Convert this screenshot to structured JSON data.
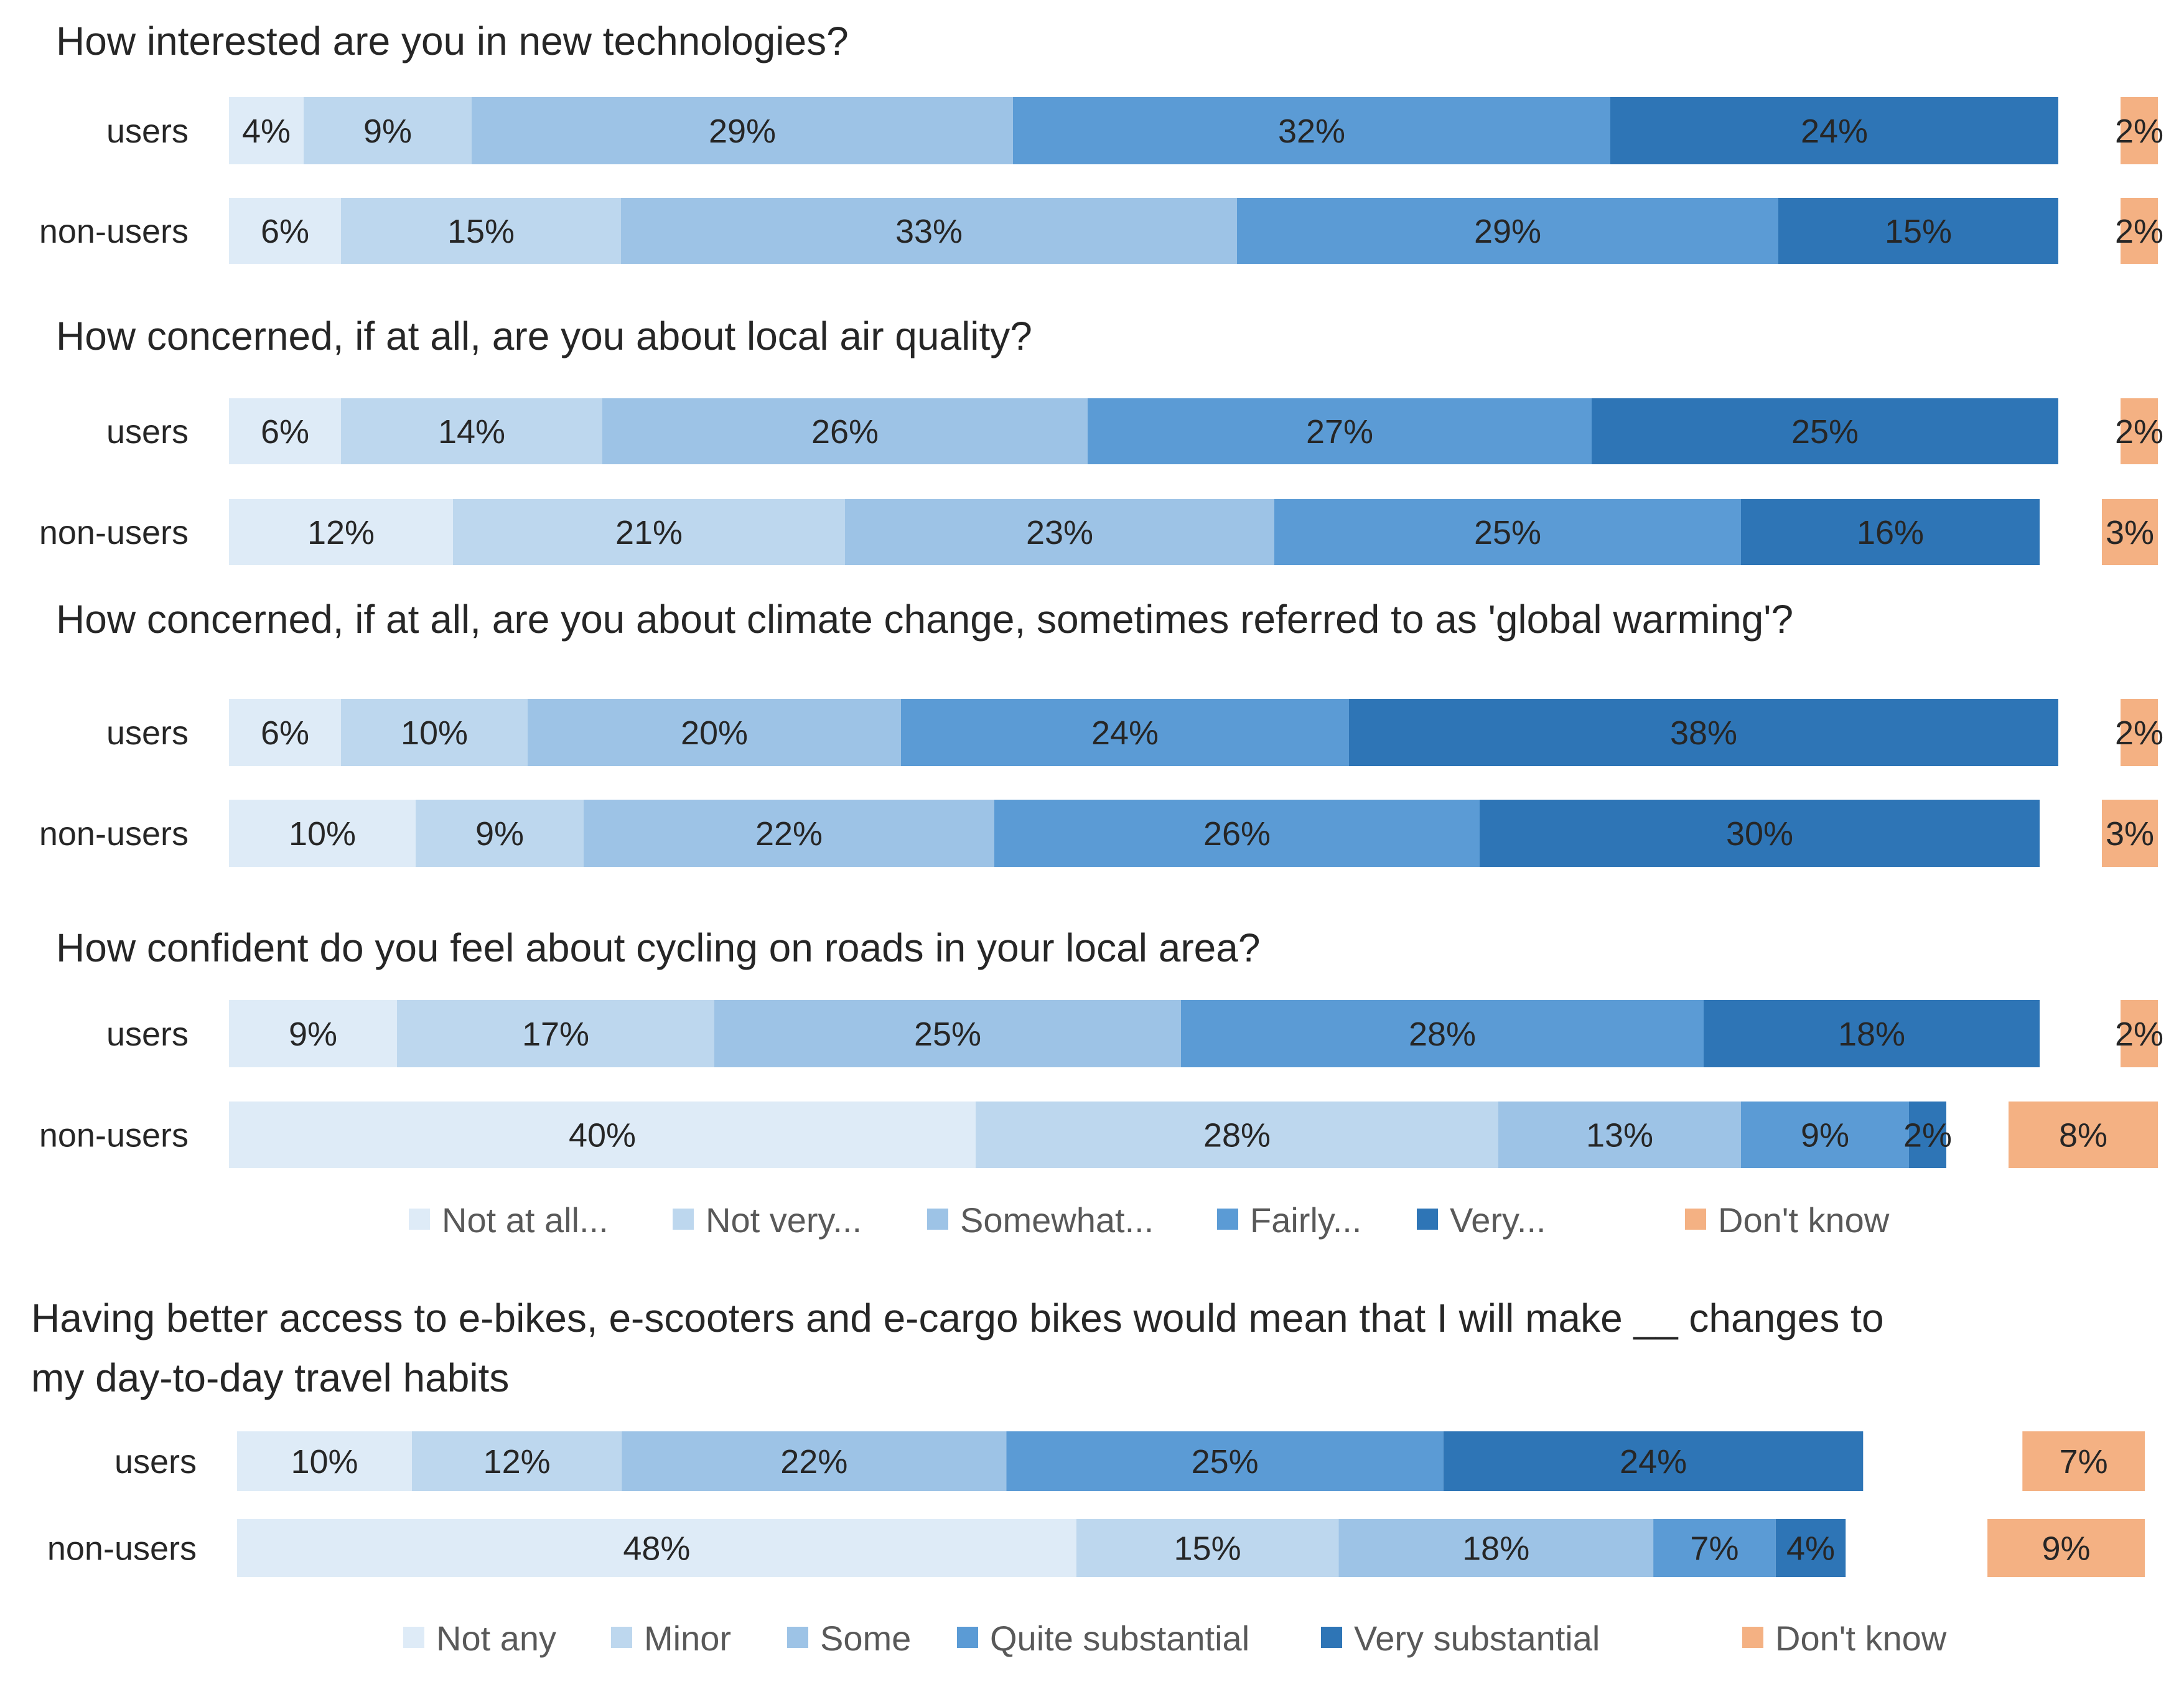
{
  "colors": {
    "scale": [
      "#deebf7",
      "#bdd7ee",
      "#9dc3e6",
      "#5b9bd5",
      "#2e75b6"
    ],
    "dont_know": "#f4b183"
  },
  "legends": [
    {
      "items": [
        "Not at all...",
        "Not very...",
        "Somewhat...",
        "Fairly...",
        "Very...",
        "Don't know"
      ]
    },
    {
      "items": [
        "Not any",
        "Minor",
        "Some",
        "Quite substantial",
        "Very substantial",
        "Don't know"
      ]
    }
  ],
  "chart_data": [
    {
      "type": "bar",
      "stacked": true,
      "orientation": "horizontal",
      "title": "How interested are you in new technologies?",
      "legend": 0,
      "categories": [
        "users",
        "non-users"
      ],
      "series": [
        {
          "name": "Not at all...",
          "values": [
            4,
            6
          ]
        },
        {
          "name": "Not very...",
          "values": [
            9,
            15
          ]
        },
        {
          "name": "Somewhat...",
          "values": [
            29,
            33
          ]
        },
        {
          "name": "Fairly...",
          "values": [
            32,
            29
          ]
        },
        {
          "name": "Very...",
          "values": [
            24,
            15
          ]
        },
        {
          "name": "Don't know",
          "values": [
            2,
            2
          ]
        }
      ]
    },
    {
      "type": "bar",
      "stacked": true,
      "orientation": "horizontal",
      "title": "How concerned, if at all, are you about local air quality?",
      "legend": 0,
      "categories": [
        "users",
        "non-users"
      ],
      "series": [
        {
          "name": "Not at all...",
          "values": [
            6,
            12
          ]
        },
        {
          "name": "Not very...",
          "values": [
            14,
            21
          ]
        },
        {
          "name": "Somewhat...",
          "values": [
            26,
            23
          ]
        },
        {
          "name": "Fairly...",
          "values": [
            27,
            25
          ]
        },
        {
          "name": "Very...",
          "values": [
            25,
            16
          ]
        },
        {
          "name": "Don't know",
          "values": [
            2,
            3
          ]
        }
      ]
    },
    {
      "type": "bar",
      "stacked": true,
      "orientation": "horizontal",
      "title": "How concerned, if at all, are you about climate change, sometimes referred to as 'global warming'?",
      "legend": 0,
      "categories": [
        "users",
        "non-users"
      ],
      "series": [
        {
          "name": "Not at all...",
          "values": [
            6,
            10
          ]
        },
        {
          "name": "Not very...",
          "values": [
            10,
            9
          ]
        },
        {
          "name": "Somewhat...",
          "values": [
            20,
            22
          ]
        },
        {
          "name": "Fairly...",
          "values": [
            24,
            26
          ]
        },
        {
          "name": "Very...",
          "values": [
            38,
            30
          ]
        },
        {
          "name": "Don't know",
          "values": [
            2,
            3
          ]
        }
      ]
    },
    {
      "type": "bar",
      "stacked": true,
      "orientation": "horizontal",
      "title": "How confident do you feel about cycling on roads in your local area?",
      "legend": 0,
      "categories": [
        "users",
        "non-users"
      ],
      "series": [
        {
          "name": "Not at all...",
          "values": [
            9,
            40
          ]
        },
        {
          "name": "Not very...",
          "values": [
            17,
            28
          ]
        },
        {
          "name": "Somewhat...",
          "values": [
            25,
            13
          ]
        },
        {
          "name": "Fairly...",
          "values": [
            28,
            9
          ]
        },
        {
          "name": "Very...",
          "values": [
            18,
            2
          ]
        },
        {
          "name": "Don't know",
          "values": [
            2,
            8
          ]
        }
      ]
    },
    {
      "type": "bar",
      "stacked": true,
      "orientation": "horizontal",
      "title_lines": [
        "Having better access to e-bikes, e-scooters and e-cargo bikes would mean that I will make __ changes to",
        "my day-to-day travel habits"
      ],
      "legend": 1,
      "categories": [
        "users",
        "non-users"
      ],
      "series": [
        {
          "name": "Not any",
          "values": [
            10,
            48
          ]
        },
        {
          "name": "Minor",
          "values": [
            12,
            15
          ]
        },
        {
          "name": "Some",
          "values": [
            22,
            18
          ]
        },
        {
          "name": "Quite substantial",
          "values": [
            25,
            7
          ]
        },
        {
          "name": "Very substantial",
          "values": [
            24,
            4
          ]
        },
        {
          "name": "Don't know",
          "values": [
            7,
            9
          ]
        }
      ]
    }
  ]
}
